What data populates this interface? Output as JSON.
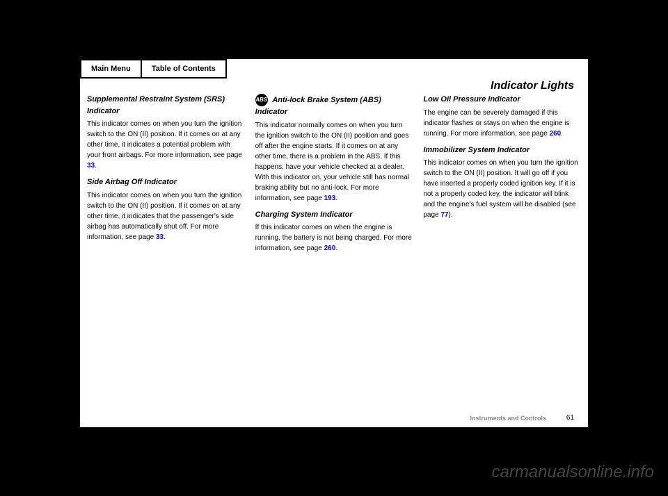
{
  "nav": {
    "main_menu": "Main Menu",
    "toc": "Table of Contents"
  },
  "title": "Indicator Lights",
  "col1": {
    "heading1": "Supplemental Restraint System (SRS) Indicator",
    "text1": "This indicator comes on when you turn the ignition switch to the ON (II) position. If it comes on at any other time, it indicates a potential problem with your front airbags. For more information, see page",
    "link1": "33",
    "text1b": ".",
    "heading2": "Side Airbag Off Indicator",
    "text2": "This indicator comes on when you turn the ignition switch to the ON (II) position. If it comes on at any other time, it indicates that the passenger's side airbag has automatically shut off. For more information, see page",
    "link2": "33",
    "text2b": "."
  },
  "col2": {
    "heading1": "Anti-lock Brake System (ABS) Indicator",
    "text1": "This indicator normally comes on when you turn the ignition switch to the ON (II) position and goes off after the engine starts. If it comes on at any other time, there is a problem in the ABS. If this happens, have your vehicle checked at a dealer. With this indicator on, your vehicle still has normal braking ability but no anti-lock. For more information, see page",
    "link1": "193",
    "text1b": ".",
    "heading2": "Charging System Indicator",
    "text2": "If this indicator comes on when the engine is running, the battery is not being charged. For more information, see page",
    "link2": "260",
    "text2b": "."
  },
  "col3": {
    "heading1": "Low Oil Pressure Indicator",
    "text1": "The engine can be severely damaged if this indicator flashes or stays on when the engine is running. For more information, see page",
    "link1": "260",
    "text1b": ".",
    "heading2": "Immobilizer System Indicator",
    "text2": "This indicator comes on when you turn the ignition switch to the ON (II) position. It will go off if you have inserted a properly coded ignition key. If it is not a properly coded key, the indicator will blink and the engine's fuel system will be disabled (see page",
    "link2": "77",
    "text2b": ")."
  },
  "footer": {
    "category": "Instruments and Controls",
    "page_num": "61"
  },
  "watermark": "carmanualsonline.info"
}
